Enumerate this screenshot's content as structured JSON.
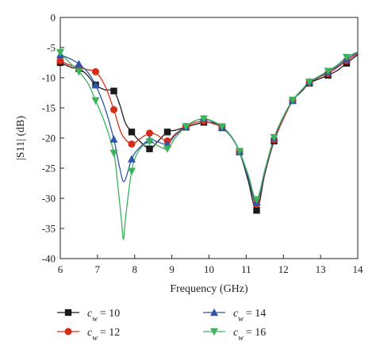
{
  "chart_data": {
    "type": "line",
    "title": "",
    "xlabel": "Frequency (GHz)",
    "ylabel": "|S11| (dB)",
    "xlim": [
      6,
      14
    ],
    "ylim": [
      -40,
      0
    ],
    "xticks": [
      6,
      7,
      8,
      9,
      10,
      11,
      12,
      13,
      14
    ],
    "yticks": [
      0,
      -5,
      -10,
      -15,
      -20,
      -25,
      -30,
      -35,
      -40
    ],
    "x_tick_labels": [
      "6",
      "7",
      "8",
      "9",
      "10",
      "11",
      "12",
      "13",
      "14"
    ],
    "y_tick_labels": [
      "0",
      "-5",
      "-10",
      "-15",
      "-20",
      "-25",
      "-30",
      "-35",
      "-40"
    ],
    "grid": false,
    "legend_position": "bottom",
    "series": [
      {
        "name": "c_w = 10",
        "legend_label": "cw = 10",
        "color": "#1a1a1a",
        "marker": "square",
        "points": [
          [
            6.0,
            -7.5
          ],
          [
            6.3,
            -8.3
          ],
          [
            6.5,
            -8.5
          ],
          [
            6.7,
            -9.4
          ],
          [
            6.95,
            -11.2
          ],
          [
            7.2,
            -12.0
          ],
          [
            7.44,
            -12.2
          ],
          [
            7.6,
            -14.5
          ],
          [
            7.75,
            -17.5
          ],
          [
            7.92,
            -19.0
          ],
          [
            8.1,
            -20.3
          ],
          [
            8.4,
            -21.8
          ],
          [
            8.6,
            -20.7
          ],
          [
            8.88,
            -19.0
          ],
          [
            9.1,
            -18.7
          ],
          [
            9.38,
            -18.2
          ],
          [
            9.6,
            -17.8
          ],
          [
            9.86,
            -17.4
          ],
          [
            10.1,
            -17.5
          ],
          [
            10.35,
            -18.3
          ],
          [
            10.6,
            -19.8
          ],
          [
            10.82,
            -22.3
          ],
          [
            11.05,
            -27.0
          ],
          [
            11.28,
            -32.0
          ],
          [
            11.5,
            -26.0
          ],
          [
            11.75,
            -20.5
          ],
          [
            12.0,
            -16.8
          ],
          [
            12.25,
            -13.8
          ],
          [
            12.5,
            -12.2
          ],
          [
            12.7,
            -10.9
          ],
          [
            13.0,
            -10.1
          ],
          [
            13.2,
            -9.6
          ],
          [
            13.45,
            -8.8
          ],
          [
            13.7,
            -7.6
          ],
          [
            14.0,
            -6.2
          ]
        ],
        "marker_x": [
          6.0,
          6.5,
          6.95,
          7.44,
          7.92,
          8.4,
          8.88,
          9.38,
          9.86,
          10.35,
          10.82,
          11.28,
          11.75,
          12.25,
          12.7,
          13.2,
          13.7
        ]
      },
      {
        "name": "c_w = 12",
        "legend_label": "cw = 12",
        "color": "#d62d1a",
        "marker": "circle",
        "points": [
          [
            6.0,
            -7.2
          ],
          [
            6.25,
            -7.9
          ],
          [
            6.5,
            -8.3
          ],
          [
            6.75,
            -8.7
          ],
          [
            6.95,
            -9.0
          ],
          [
            7.2,
            -11.3
          ],
          [
            7.44,
            -15.3
          ],
          [
            7.65,
            -19.3
          ],
          [
            7.92,
            -21.0
          ],
          [
            8.1,
            -20.3
          ],
          [
            8.4,
            -19.2
          ],
          [
            8.6,
            -19.5
          ],
          [
            8.88,
            -20.5
          ],
          [
            9.1,
            -19.3
          ],
          [
            9.38,
            -18.1
          ],
          [
            9.6,
            -17.5
          ],
          [
            9.86,
            -17.2
          ],
          [
            10.1,
            -17.6
          ],
          [
            10.35,
            -18.2
          ],
          [
            10.6,
            -19.8
          ],
          [
            10.82,
            -22.3
          ],
          [
            11.05,
            -26.5
          ],
          [
            11.28,
            -31.0
          ],
          [
            11.5,
            -25.8
          ],
          [
            11.75,
            -20.3
          ],
          [
            12.0,
            -16.8
          ],
          [
            12.25,
            -13.8
          ],
          [
            12.5,
            -12.0
          ],
          [
            12.7,
            -10.8
          ],
          [
            13.0,
            -9.8
          ],
          [
            13.2,
            -9.3
          ],
          [
            13.45,
            -8.3
          ],
          [
            13.7,
            -7.2
          ],
          [
            14.0,
            -6.0
          ]
        ],
        "marker_x": [
          6.0,
          6.5,
          6.95,
          7.44,
          7.92,
          8.4,
          8.88,
          9.38,
          9.86,
          10.35,
          10.82,
          11.28,
          11.75,
          12.25,
          12.7,
          13.2,
          13.7
        ]
      },
      {
        "name": "c_w = 14",
        "legend_label": "cw = 14",
        "color": "#2f55a8",
        "marker": "triangle-up",
        "points": [
          [
            6.0,
            -6.2
          ],
          [
            6.25,
            -6.8
          ],
          [
            6.5,
            -7.7
          ],
          [
            6.75,
            -9.2
          ],
          [
            6.95,
            -11.2
          ],
          [
            7.2,
            -15.0
          ],
          [
            7.44,
            -20.2
          ],
          [
            7.6,
            -25.0
          ],
          [
            7.72,
            -27.2
          ],
          [
            7.92,
            -23.5
          ],
          [
            8.1,
            -21.8
          ],
          [
            8.4,
            -20.3
          ],
          [
            8.6,
            -20.6
          ],
          [
            8.88,
            -21.0
          ],
          [
            9.1,
            -19.5
          ],
          [
            9.38,
            -18.1
          ],
          [
            9.6,
            -17.2
          ],
          [
            9.86,
            -16.8
          ],
          [
            10.1,
            -17.3
          ],
          [
            10.35,
            -18.2
          ],
          [
            10.6,
            -19.8
          ],
          [
            10.82,
            -22.3
          ],
          [
            11.05,
            -26.5
          ],
          [
            11.28,
            -30.7
          ],
          [
            11.5,
            -25.6
          ],
          [
            11.75,
            -20.0
          ],
          [
            12.0,
            -16.5
          ],
          [
            12.25,
            -13.8
          ],
          [
            12.5,
            -12.0
          ],
          [
            12.7,
            -10.7
          ],
          [
            13.0,
            -9.7
          ],
          [
            13.2,
            -9.0
          ],
          [
            13.45,
            -8.1
          ],
          [
            13.7,
            -6.9
          ],
          [
            14.0,
            -5.8
          ]
        ],
        "marker_x": [
          6.0,
          6.5,
          6.95,
          7.44,
          7.92,
          8.4,
          8.88,
          9.38,
          9.86,
          10.35,
          10.82,
          11.28,
          11.75,
          12.25,
          12.7,
          13.2,
          13.7
        ]
      },
      {
        "name": "c_w = 16",
        "legend_label": "cw = 16",
        "color": "#3cb35c",
        "marker": "triangle-down",
        "points": [
          [
            6.0,
            -5.8
          ],
          [
            6.25,
            -7.5
          ],
          [
            6.5,
            -9.0
          ],
          [
            6.75,
            -11.0
          ],
          [
            6.95,
            -13.8
          ],
          [
            7.2,
            -17.5
          ],
          [
            7.44,
            -22.5
          ],
          [
            7.55,
            -28.0
          ],
          [
            7.65,
            -34.0
          ],
          [
            7.7,
            -36.8
          ],
          [
            7.76,
            -33.0
          ],
          [
            7.92,
            -25.5
          ],
          [
            8.1,
            -22.2
          ],
          [
            8.4,
            -20.6
          ],
          [
            8.6,
            -21.2
          ],
          [
            8.88,
            -21.8
          ],
          [
            9.1,
            -19.9
          ],
          [
            9.38,
            -18.1
          ],
          [
            9.6,
            -17.2
          ],
          [
            9.86,
            -16.8
          ],
          [
            10.1,
            -17.2
          ],
          [
            10.35,
            -18.1
          ],
          [
            10.6,
            -19.7
          ],
          [
            10.82,
            -22.2
          ],
          [
            11.05,
            -26.0
          ],
          [
            11.28,
            -30.2
          ],
          [
            11.5,
            -25.3
          ],
          [
            11.75,
            -19.9
          ],
          [
            12.0,
            -16.4
          ],
          [
            12.25,
            -13.7
          ],
          [
            12.5,
            -12.0
          ],
          [
            12.7,
            -10.7
          ],
          [
            13.0,
            -9.6
          ],
          [
            13.2,
            -8.9
          ],
          [
            13.45,
            -7.9
          ],
          [
            13.7,
            -6.6
          ],
          [
            14.0,
            -5.7
          ]
        ],
        "marker_x": [
          6.0,
          6.5,
          6.95,
          7.44,
          7.92,
          8.4,
          8.88,
          9.38,
          9.86,
          10.35,
          10.82,
          11.28,
          11.75,
          12.25,
          12.7,
          13.2,
          13.7
        ]
      }
    ]
  }
}
